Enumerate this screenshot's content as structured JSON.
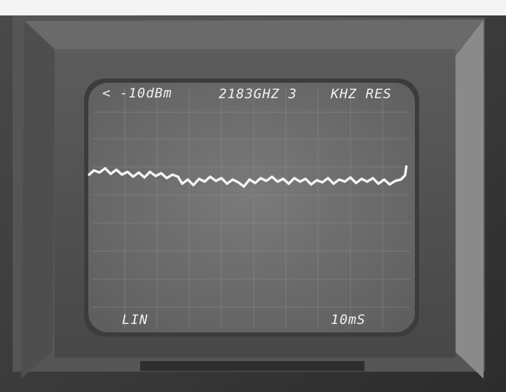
{
  "screen": {
    "top_left": "< -10dBm",
    "top_center": "2183GHZ 3",
    "top_right": "KHZ RES",
    "bottom_left": "LIN",
    "bottom_right": "10mS"
  }
}
